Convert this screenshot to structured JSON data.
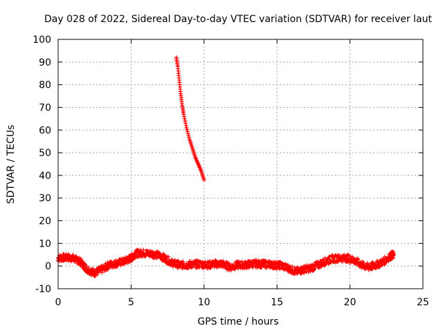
{
  "colors": {
    "series": "#ff0000",
    "grid": "#a0a0a0",
    "axis": "#000000"
  },
  "chart_data": {
    "type": "scatter",
    "title": "Day 028 of 2022, Sidereal Day-to-day VTEC variation (SDTVAR) for receiver laut",
    "xlabel": "GPS time / hours",
    "ylabel": "SDTVAR / TECUs",
    "xlim": [
      0,
      25
    ],
    "ylim": [
      -10,
      100
    ],
    "xticks": [
      0,
      5,
      10,
      15,
      20,
      25
    ],
    "yticks": [
      -10,
      0,
      10,
      20,
      30,
      40,
      50,
      60,
      70,
      80,
      90,
      100
    ],
    "grid": true,
    "marker": "plus",
    "series": [
      {
        "name": "SDTVAR",
        "band_points": [
          [
            0,
            3.5
          ],
          [
            0.5,
            3.8
          ],
          [
            1.0,
            3.5
          ],
          [
            1.5,
            2.0
          ],
          [
            2.0,
            -1.5
          ],
          [
            2.5,
            -3.0
          ],
          [
            3.0,
            -1.5
          ],
          [
            3.5,
            0.5
          ],
          [
            4.0,
            1.2
          ],
          [
            4.5,
            2.0
          ],
          [
            5.0,
            3.5
          ],
          [
            5.3,
            5.5
          ],
          [
            5.8,
            5.8
          ],
          [
            6.3,
            5.5
          ],
          [
            6.8,
            5.0
          ],
          [
            7.3,
            3.5
          ],
          [
            7.8,
            1.5
          ],
          [
            8.3,
            0.5
          ],
          [
            8.8,
            0.5
          ],
          [
            9.3,
            0.8
          ],
          [
            9.8,
            0.8
          ],
          [
            10.3,
            0.5
          ],
          [
            10.8,
            1.0
          ],
          [
            11.3,
            0.8
          ],
          [
            11.8,
            -0.5
          ],
          [
            12.3,
            0.5
          ],
          [
            12.8,
            0.5
          ],
          [
            13.3,
            1.0
          ],
          [
            13.8,
            1.0
          ],
          [
            14.3,
            0.8
          ],
          [
            14.8,
            0.5
          ],
          [
            15.3,
            0.2
          ],
          [
            15.8,
            -1.0
          ],
          [
            16.3,
            -2.5
          ],
          [
            16.8,
            -1.5
          ],
          [
            17.3,
            -1.0
          ],
          [
            17.8,
            0.5
          ],
          [
            18.3,
            2.0
          ],
          [
            18.8,
            3.2
          ],
          [
            19.3,
            3.5
          ],
          [
            19.8,
            3.5
          ],
          [
            20.3,
            2.5
          ],
          [
            20.8,
            0.5
          ],
          [
            21.3,
            -0.5
          ],
          [
            21.8,
            0.5
          ],
          [
            22.3,
            2.0
          ],
          [
            22.8,
            4.5
          ],
          [
            23.0,
            5.0
          ]
        ],
        "spike_points": [
          [
            8.1,
            92
          ],
          [
            8.2,
            88
          ],
          [
            8.3,
            82
          ],
          [
            8.4,
            76
          ],
          [
            8.5,
            71
          ],
          [
            8.6,
            67
          ],
          [
            8.8,
            61
          ],
          [
            9.0,
            56
          ],
          [
            9.2,
            52
          ],
          [
            9.4,
            48
          ],
          [
            9.6,
            45
          ],
          [
            9.8,
            42
          ],
          [
            10.0,
            38
          ]
        ]
      }
    ]
  }
}
